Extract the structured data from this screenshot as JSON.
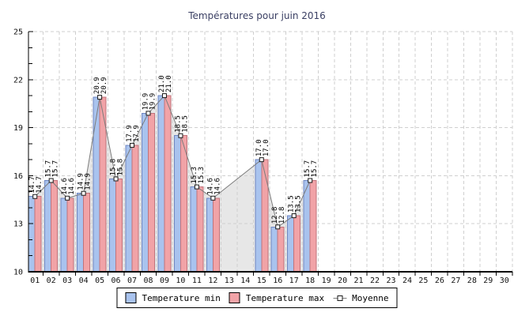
{
  "title": "Températures pour juin 2016",
  "legend": {
    "items": [
      {
        "label": "Temperature min",
        "swatch_color": "#a9c3ee",
        "swatch_border": "#000000",
        "type": "box"
      },
      {
        "label": "Temperature max",
        "swatch_color": "#f1a3a7",
        "swatch_border": "#000000",
        "type": "box"
      },
      {
        "label": "Moyenne",
        "type": "line-marker",
        "line_color": "#7c7c7c",
        "marker": "open-square"
      }
    ]
  },
  "chart_data": {
    "type": "bar",
    "title": "Températures pour juin 2016",
    "categories": [
      "01",
      "02",
      "03",
      "04",
      "05",
      "06",
      "07",
      "08",
      "09",
      "10",
      "11",
      "12",
      "13",
      "14",
      "15",
      "16",
      "17",
      "18",
      "19",
      "20",
      "21",
      "22",
      "23",
      "24",
      "25",
      "26",
      "27",
      "28",
      "29",
      "30"
    ],
    "series": [
      {
        "name": "Temperature min",
        "type": "bar",
        "color": "#a9c3ee",
        "border_color": "#6e86c0",
        "values": [
          14.7,
          15.7,
          14.6,
          14.9,
          20.9,
          15.8,
          17.9,
          19.9,
          21.0,
          18.5,
          15.3,
          14.6,
          null,
          null,
          17.0,
          12.8,
          13.5,
          15.7,
          null,
          null,
          null,
          null,
          null,
          null,
          null,
          null,
          null,
          null,
          null,
          null
        ]
      },
      {
        "name": "Temperature max",
        "type": "bar",
        "color": "#f1a3a7",
        "border_color": "#c0737b",
        "values": [
          14.7,
          15.7,
          14.6,
          14.9,
          20.9,
          15.8,
          17.9,
          19.9,
          21.0,
          18.5,
          15.3,
          14.6,
          null,
          null,
          17.0,
          12.8,
          13.5,
          15.7,
          null,
          null,
          null,
          null,
          null,
          null,
          null,
          null,
          null,
          null,
          null,
          null
        ]
      },
      {
        "name": "Moyenne",
        "type": "area-line",
        "line_color": "#7c7c7c",
        "fill_color": "#e7e7e7",
        "marker": "open-square",
        "values": [
          14.7,
          15.7,
          14.6,
          14.9,
          20.9,
          15.8,
          17.9,
          19.9,
          21.0,
          18.5,
          15.3,
          14.6,
          null,
          null,
          17.0,
          12.8,
          13.5,
          15.7,
          null,
          null,
          null,
          null,
          null,
          null,
          null,
          null,
          null,
          null,
          null,
          null
        ]
      }
    ],
    "value_label_format": "one-decimal-rotated-90",
    "xlabel": "",
    "ylabel": "",
    "ylim": [
      10,
      25
    ],
    "yticks": [
      10,
      13,
      16,
      19,
      22,
      25
    ],
    "minor_tick_step": 1,
    "grid": true,
    "gridline_color": "#cfcfcf",
    "axis_color": "#000000",
    "tick_text_color": "#111111",
    "legend_position": "bottom"
  },
  "colors": {
    "background": "#ffffff",
    "title": "#3a3f63"
  }
}
